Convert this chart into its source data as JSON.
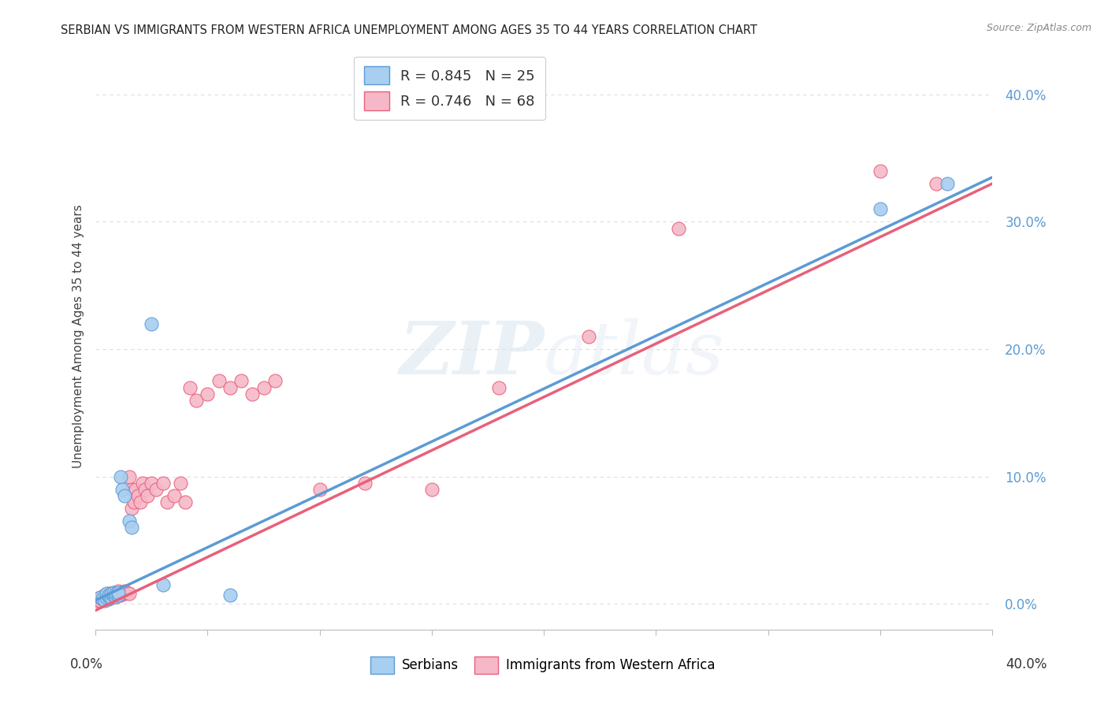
{
  "title": "SERBIAN VS IMMIGRANTS FROM WESTERN AFRICA UNEMPLOYMENT AMONG AGES 35 TO 44 YEARS CORRELATION CHART",
  "source": "Source: ZipAtlas.com",
  "ylabel": "Unemployment Among Ages 35 to 44 years",
  "yticks": [
    "0.0%",
    "10.0%",
    "20.0%",
    "30.0%",
    "40.0%"
  ],
  "ytick_vals": [
    0.0,
    0.1,
    0.2,
    0.3,
    0.4
  ],
  "xlim": [
    0.0,
    0.4
  ],
  "ylim": [
    -0.02,
    0.44
  ],
  "watermark": "ZIPatlas",
  "serbian_R": 0.845,
  "serbian_N": 25,
  "west_africa_R": 0.746,
  "west_africa_N": 68,
  "serbian_color": "#a8cef0",
  "west_africa_color": "#f5b8c8",
  "serbian_line_color": "#5b9bd5",
  "west_africa_line_color": "#e8607a",
  "background_color": "#ffffff",
  "grid_color": "#dddddd",
  "serbian_x": [
    0.002,
    0.003,
    0.004,
    0.005,
    0.005,
    0.006,
    0.006,
    0.007,
    0.007,
    0.008,
    0.008,
    0.009,
    0.009,
    0.01,
    0.01,
    0.011,
    0.012,
    0.013,
    0.015,
    0.016,
    0.025,
    0.03,
    0.06,
    0.35,
    0.38
  ],
  "serbian_y": [
    0.005,
    0.004,
    0.003,
    0.005,
    0.008,
    0.006,
    0.007,
    0.005,
    0.008,
    0.007,
    0.009,
    0.006,
    0.008,
    0.007,
    0.009,
    0.1,
    0.09,
    0.085,
    0.065,
    0.06,
    0.22,
    0.015,
    0.007,
    0.31,
    0.33
  ],
  "west_africa_x": [
    0.001,
    0.002,
    0.002,
    0.003,
    0.003,
    0.003,
    0.004,
    0.004,
    0.004,
    0.005,
    0.005,
    0.005,
    0.005,
    0.006,
    0.006,
    0.006,
    0.007,
    0.007,
    0.007,
    0.008,
    0.008,
    0.008,
    0.009,
    0.009,
    0.01,
    0.01,
    0.01,
    0.011,
    0.011,
    0.012,
    0.013,
    0.013,
    0.014,
    0.015,
    0.015,
    0.016,
    0.016,
    0.017,
    0.018,
    0.019,
    0.02,
    0.021,
    0.022,
    0.023,
    0.025,
    0.027,
    0.03,
    0.032,
    0.035,
    0.038,
    0.04,
    0.042,
    0.045,
    0.05,
    0.055,
    0.06,
    0.065,
    0.07,
    0.075,
    0.08,
    0.1,
    0.12,
    0.15,
    0.18,
    0.22,
    0.26,
    0.35,
    0.375
  ],
  "west_africa_y": [
    0.003,
    0.003,
    0.005,
    0.004,
    0.005,
    0.006,
    0.004,
    0.006,
    0.007,
    0.004,
    0.005,
    0.006,
    0.007,
    0.004,
    0.006,
    0.008,
    0.005,
    0.006,
    0.008,
    0.006,
    0.007,
    0.009,
    0.006,
    0.008,
    0.007,
    0.008,
    0.01,
    0.007,
    0.009,
    0.008,
    0.008,
    0.01,
    0.009,
    0.008,
    0.1,
    0.075,
    0.09,
    0.08,
    0.09,
    0.085,
    0.08,
    0.095,
    0.09,
    0.085,
    0.095,
    0.09,
    0.095,
    0.08,
    0.085,
    0.095,
    0.08,
    0.17,
    0.16,
    0.165,
    0.175,
    0.17,
    0.175,
    0.165,
    0.17,
    0.175,
    0.09,
    0.095,
    0.09,
    0.17,
    0.21,
    0.295,
    0.34,
    0.33
  ]
}
